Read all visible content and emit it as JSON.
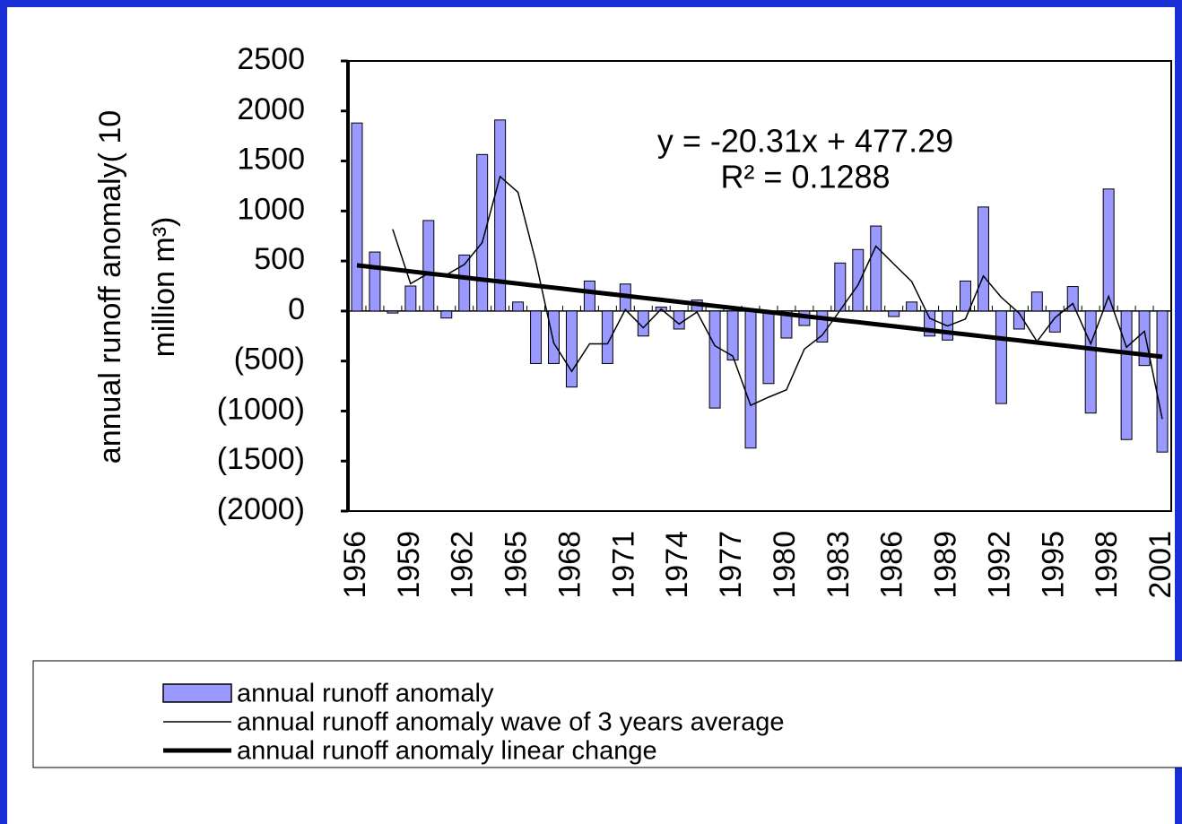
{
  "chart_data": {
    "type": "bar",
    "y_label": "annual runoff anomaly( 10",
    "y_label_2": "million m³)",
    "equation": "y = -20.31x + 477.29",
    "r_squared": "R² = 0.1288",
    "categories": [
      "1956",
      null,
      null,
      "1959",
      null,
      null,
      "1962",
      null,
      null,
      "1965",
      null,
      null,
      "1968",
      null,
      null,
      "1971",
      null,
      null,
      "1974",
      null,
      null,
      "1977",
      null,
      null,
      "1980",
      null,
      null,
      "1983",
      null,
      null,
      "1986",
      null,
      null,
      "1989",
      null,
      null,
      "1992",
      null,
      null,
      "1995",
      null,
      null,
      "1998",
      null,
      null,
      "2001"
    ],
    "series": [
      {
        "name": "annual runoff anomaly",
        "type": "bar",
        "color": "#9999ff",
        "values": [
          1880,
          590,
          -20,
          250,
          905,
          -70,
          560,
          1565,
          1910,
          90,
          -525,
          -525,
          -760,
          300,
          -525,
          270,
          -250,
          40,
          -180,
          110,
          -970,
          -490,
          -1370,
          -725,
          -270,
          -145,
          -310,
          480,
          615,
          850,
          -55,
          90,
          -250,
          -290,
          300,
          1040,
          -925,
          -180,
          190,
          -210,
          245,
          -1020,
          1220,
          -1285,
          -545,
          -1410
        ]
      },
      {
        "name": "annual runoff anomaly wave of 3 years average",
        "type": "line",
        "color": "#000000",
        "width": 1.5,
        "values": [
          null,
          null,
          817,
          273,
          378,
          362,
          465,
          685,
          1345,
          1188,
          492,
          -320,
          -603,
          -328,
          -328,
          15,
          -168,
          20,
          -130,
          -10,
          -347,
          -450,
          -943,
          -862,
          -788,
          -380,
          -242,
          8,
          262,
          648,
          470,
          295,
          -72,
          -150,
          -80,
          350,
          138,
          -22,
          -305,
          -67,
          75,
          -328,
          148,
          -362,
          -203,
          -1080
        ]
      },
      {
        "name": "annual runoff anomaly linear change",
        "type": "line",
        "color": "#000000",
        "width": 5,
        "values": [
          456.98,
          436.67,
          416.36,
          396.05,
          375.74,
          355.43,
          335.12,
          314.81,
          294.5,
          274.19,
          253.88,
          233.57,
          213.26,
          192.95,
          172.64,
          152.33,
          132.02,
          111.71,
          91.4,
          71.09,
          50.78,
          30.47,
          10.16,
          -10.15,
          -30.46,
          -50.77,
          -71.08,
          -91.39,
          -111.7,
          -132.01,
          -152.32,
          -172.63,
          -192.94,
          -213.25,
          -233.56,
          -253.87,
          -274.18,
          -294.49,
          -314.8,
          -335.11,
          -355.42,
          -375.73,
          -396.04,
          -416.35,
          -436.66,
          -456.97
        ]
      }
    ],
    "ylim": [
      -2000,
      2500
    ],
    "yticks": [
      2500,
      2000,
      1500,
      1000,
      500,
      0,
      {
        "value": -500,
        "label": "(500)"
      },
      {
        "value": -1000,
        "label": "(1000)"
      },
      {
        "value": -1500,
        "label": "(1500)"
      },
      {
        "value": -2000,
        "label": "(2000)"
      }
    ],
    "negative_tick_color": "#ff0000"
  }
}
